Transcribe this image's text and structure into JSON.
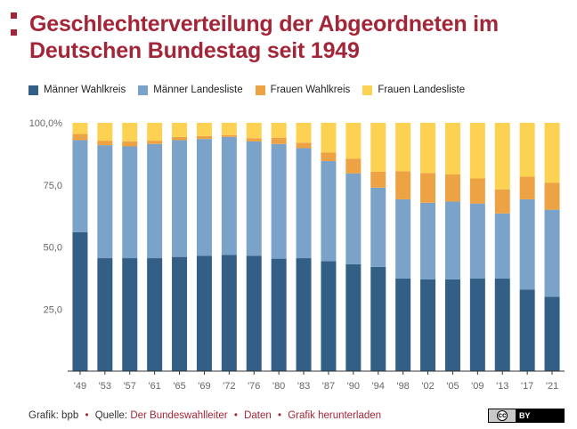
{
  "title": "Geschlechterverteilung der Abgeordneten im Deutschen Bundestag seit 1949",
  "footer": {
    "source_prefix": "Grafik: bpb",
    "separator": "•",
    "quelle_prefix": "Quelle:",
    "quelle_link": "Der Bundeswahlleiter",
    "daten_link": "Daten",
    "download_link": "Grafik herunterladen",
    "license": "BY"
  },
  "colors": {
    "maenner_wahlkreis": "#335f86",
    "maenner_landesliste": "#7ba3c9",
    "frauen_wahlkreis": "#eda244",
    "frauen_landesliste": "#fdd252",
    "accent": "#a32638",
    "axis_text": "#666666"
  },
  "chart_data": {
    "type": "bar",
    "stacked": true,
    "categories": [
      "'49",
      "'53",
      "'57",
      "'61",
      "'65",
      "'69",
      "'72",
      "'76",
      "'80",
      "'83",
      "'87",
      "'90",
      "'94",
      "'98",
      "'02",
      "'05",
      "'09",
      "'13",
      "'17",
      "'21"
    ],
    "series": [
      {
        "name": "Männer Wahlkreis",
        "values": [
          56.0,
          45.5,
          45.5,
          45.5,
          46.0,
          46.5,
          46.8,
          46.5,
          45.3,
          45.5,
          44.3,
          43.1,
          42.0,
          37.3,
          37.0,
          37.0,
          37.3,
          37.3,
          32.8,
          30.0
        ]
      },
      {
        "name": "Männer Landesliste",
        "values": [
          37.0,
          45.5,
          45.0,
          46.0,
          47.0,
          47.0,
          47.5,
          46.0,
          46.2,
          44.3,
          40.3,
          36.5,
          31.9,
          31.9,
          30.8,
          31.3,
          30.2,
          26.2,
          36.4,
          35.0
        ]
      },
      {
        "name": "Frauen Wahlkreis",
        "values": [
          2.5,
          1.8,
          2.0,
          1.3,
          1.3,
          1.2,
          0.8,
          1.3,
          2.5,
          2.2,
          3.4,
          6.0,
          6.4,
          11.3,
          12.0,
          10.9,
          10.1,
          9.7,
          9.1,
          10.8
        ]
      },
      {
        "name": "Frauen Landesliste",
        "values": [
          4.5,
          7.2,
          7.5,
          7.2,
          5.7,
          5.3,
          4.9,
          6.2,
          6.0,
          8.0,
          12.0,
          14.4,
          19.7,
          19.5,
          20.2,
          20.8,
          22.4,
          26.8,
          21.7,
          24.2
        ]
      }
    ],
    "y_ticks": [
      "100,0%",
      "75,0",
      "50,0",
      "25,0"
    ],
    "y_tick_values": [
      100,
      75,
      50,
      25
    ],
    "ylim": [
      0,
      100
    ],
    "legend_position": "top-left",
    "grid": false
  }
}
